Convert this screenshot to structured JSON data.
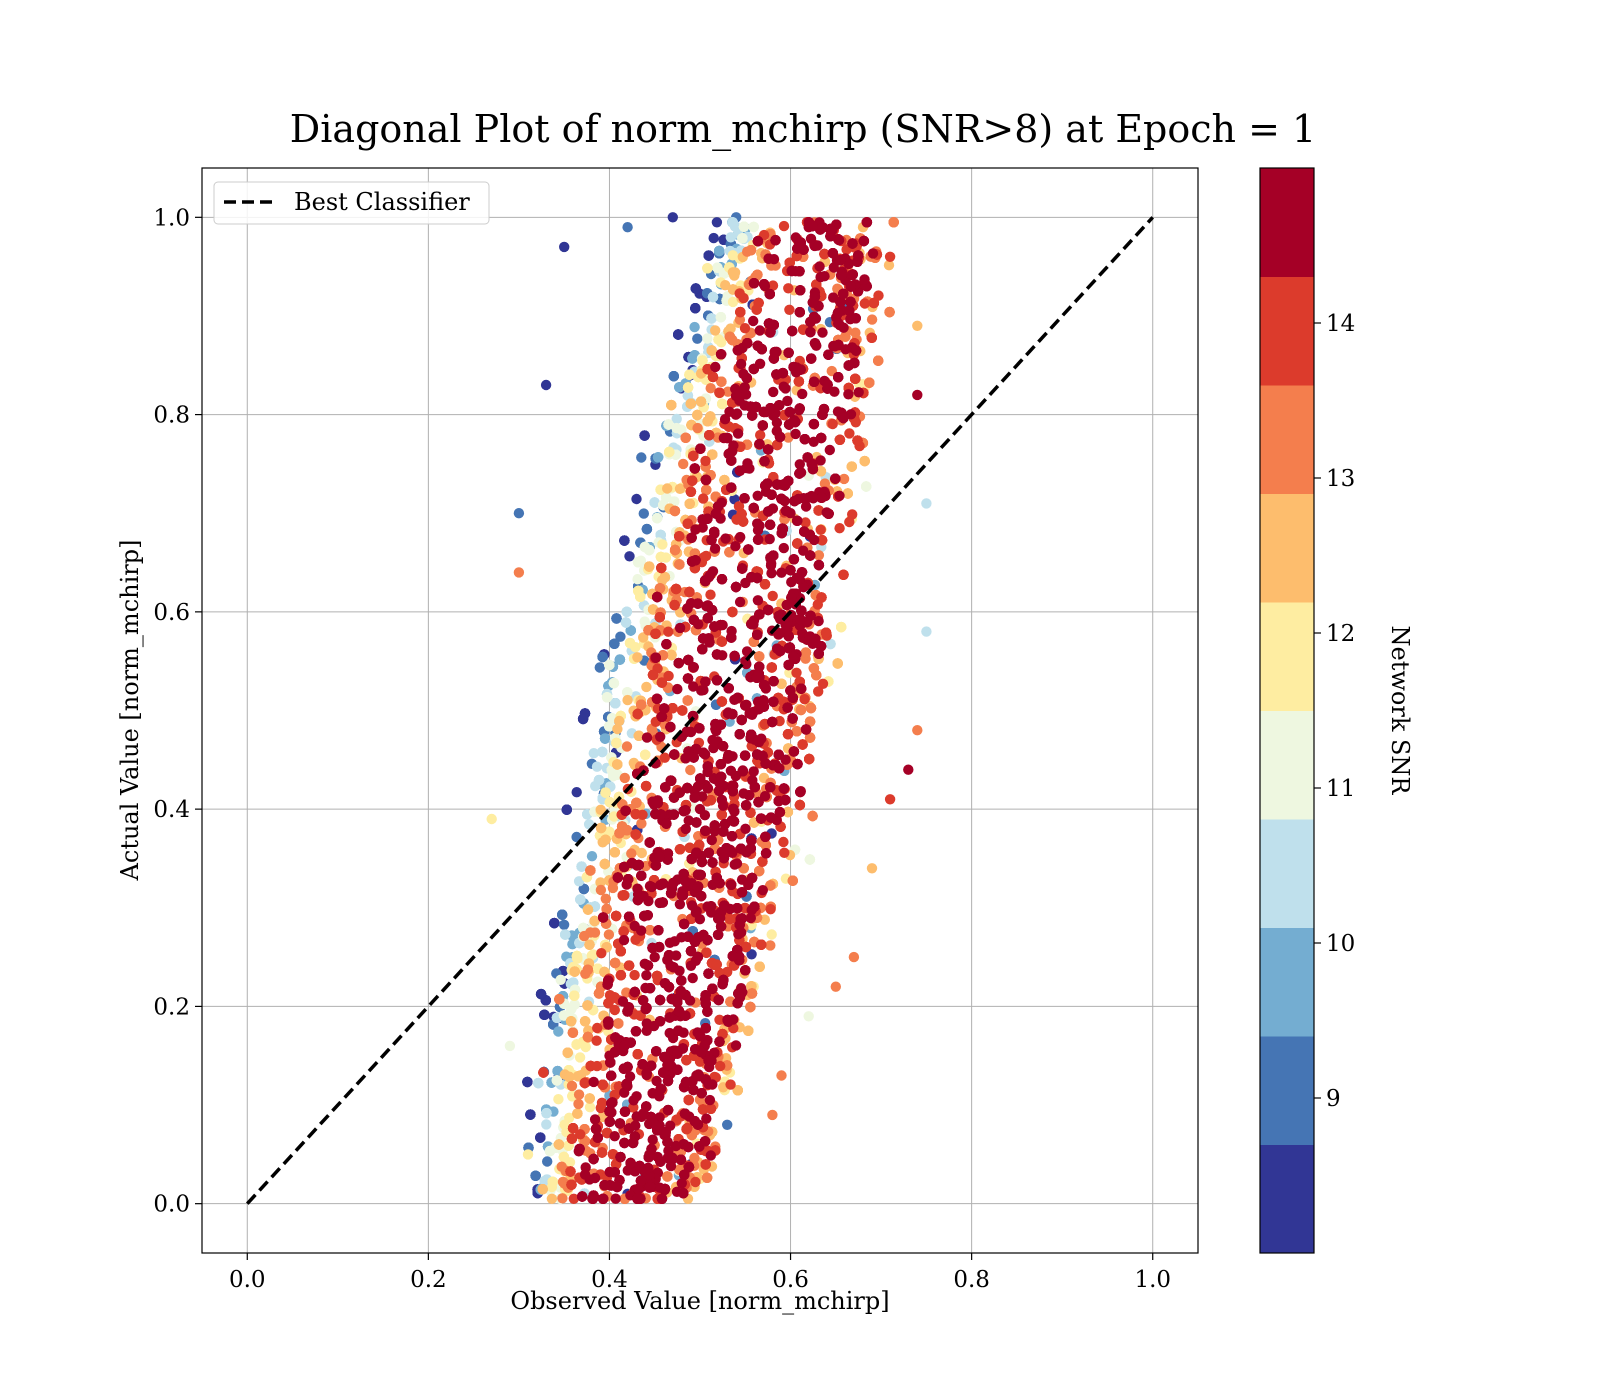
{
  "chart_data": {
    "type": "scatter",
    "title": "Diagonal Plot of norm_mchirp (SNR>8) at Epoch = 1",
    "xlabel": "Observed Value [norm_mchirp]",
    "ylabel": "Actual Value [norm_mchirp]",
    "xlim": [
      -0.05,
      1.05
    ],
    "ylim": [
      -0.05,
      1.05
    ],
    "xticks": [
      0.0,
      0.2,
      0.4,
      0.6,
      0.8,
      1.0
    ],
    "yticks": [
      0.0,
      0.2,
      0.4,
      0.6,
      0.8,
      1.0
    ],
    "xtick_labels": [
      "0.0",
      "0.2",
      "0.4",
      "0.6",
      "0.8",
      "1.0"
    ],
    "ytick_labels": [
      "0.0",
      "0.2",
      "0.4",
      "0.6",
      "0.8",
      "1.0"
    ],
    "grid": true,
    "legend": {
      "position": "top-left",
      "entries": [
        {
          "label": "Best Classifier",
          "style": "dashed",
          "color": "#000000"
        }
      ]
    },
    "reference_line": {
      "name": "Best Classifier",
      "x": [
        0.0,
        1.0
      ],
      "y": [
        0.0,
        1.0
      ]
    },
    "colorbar": {
      "label": "Network SNR",
      "range": [
        8,
        15
      ],
      "ticks": [
        9,
        10,
        11,
        12,
        13,
        14
      ],
      "tick_labels": [
        "9",
        "10",
        "11",
        "12",
        "13",
        "14"
      ],
      "bins": [
        {
          "from": 8.0,
          "to": 8.7,
          "color": "#313695"
        },
        {
          "from": 8.7,
          "to": 9.4,
          "color": "#4575b4"
        },
        {
          "from": 9.4,
          "to": 10.1,
          "color": "#74add1"
        },
        {
          "from": 10.1,
          "to": 10.8,
          "color": "#bfe0ec"
        },
        {
          "from": 10.8,
          "to": 11.5,
          "color": "#eef7e0"
        },
        {
          "from": 11.5,
          "to": 12.2,
          "color": "#feeda1"
        },
        {
          "from": 12.2,
          "to": 12.9,
          "color": "#fdbd6d"
        },
        {
          "from": 12.9,
          "to": 13.6,
          "color": "#f47e4d"
        },
        {
          "from": 13.6,
          "to": 14.3,
          "color": "#dc3b2c"
        },
        {
          "from": 14.3,
          "to": 15.0,
          "color": "#a50026"
        }
      ]
    },
    "series": [
      {
        "color_by": "Network SNR",
        "approx_point_count": 9000,
        "points": [
          {
            "x": 0.33,
            "y": 0.83,
            "snr": 8.2
          },
          {
            "x": 0.3,
            "y": 0.7,
            "snr": 9.1
          },
          {
            "x": 0.3,
            "y": 0.64,
            "snr": 13.2
          },
          {
            "x": 0.27,
            "y": 0.39,
            "snr": 12.0
          },
          {
            "x": 0.29,
            "y": 0.16,
            "snr": 11.2
          },
          {
            "x": 0.31,
            "y": 0.05,
            "snr": 12.1
          },
          {
            "x": 0.35,
            "y": 0.97,
            "snr": 8.3
          },
          {
            "x": 0.42,
            "y": 0.99,
            "snr": 9.2
          },
          {
            "x": 0.47,
            "y": 1.0,
            "snr": 8.6
          },
          {
            "x": 0.54,
            "y": 1.0,
            "snr": 9.0
          },
          {
            "x": 0.62,
            "y": 0.99,
            "snr": 14.9
          },
          {
            "x": 0.68,
            "y": 0.99,
            "snr": 12.5
          },
          {
            "x": 0.71,
            "y": 0.96,
            "snr": 14.0
          },
          {
            "x": 0.74,
            "y": 0.89,
            "snr": 12.3
          },
          {
            "x": 0.74,
            "y": 0.82,
            "snr": 14.6
          },
          {
            "x": 0.75,
            "y": 0.71,
            "snr": 10.5
          },
          {
            "x": 0.75,
            "y": 0.58,
            "snr": 10.2
          },
          {
            "x": 0.74,
            "y": 0.48,
            "snr": 13.3
          },
          {
            "x": 0.73,
            "y": 0.44,
            "snr": 14.8
          },
          {
            "x": 0.71,
            "y": 0.41,
            "snr": 14.2
          },
          {
            "x": 0.69,
            "y": 0.34,
            "snr": 12.2
          },
          {
            "x": 0.67,
            "y": 0.25,
            "snr": 13.2
          },
          {
            "x": 0.65,
            "y": 0.22,
            "snr": 13.2
          },
          {
            "x": 0.62,
            "y": 0.19,
            "snr": 11.2
          },
          {
            "x": 0.59,
            "y": 0.13,
            "snr": 13.4
          },
          {
            "x": 0.58,
            "y": 0.09,
            "snr": 13.1
          },
          {
            "x": 0.53,
            "y": 0.08,
            "snr": 9.0
          },
          {
            "x": 0.49,
            "y": 0.04,
            "snr": 8.6
          },
          {
            "x": 0.46,
            "y": 0.01,
            "snr": 12.1
          },
          {
            "x": 0.42,
            "y": 0.01,
            "snr": 8.4
          },
          {
            "x": 0.38,
            "y": 0.03,
            "snr": 10.0
          },
          {
            "x": 0.45,
            "y": 0.25,
            "snr": 14.9
          },
          {
            "x": 0.5,
            "y": 0.4,
            "snr": 14.9
          },
          {
            "x": 0.55,
            "y": 0.55,
            "snr": 14.9
          },
          {
            "x": 0.6,
            "y": 0.7,
            "snr": 14.9
          },
          {
            "x": 0.4,
            "y": 0.15,
            "snr": 14.9
          }
        ]
      }
    ]
  }
}
